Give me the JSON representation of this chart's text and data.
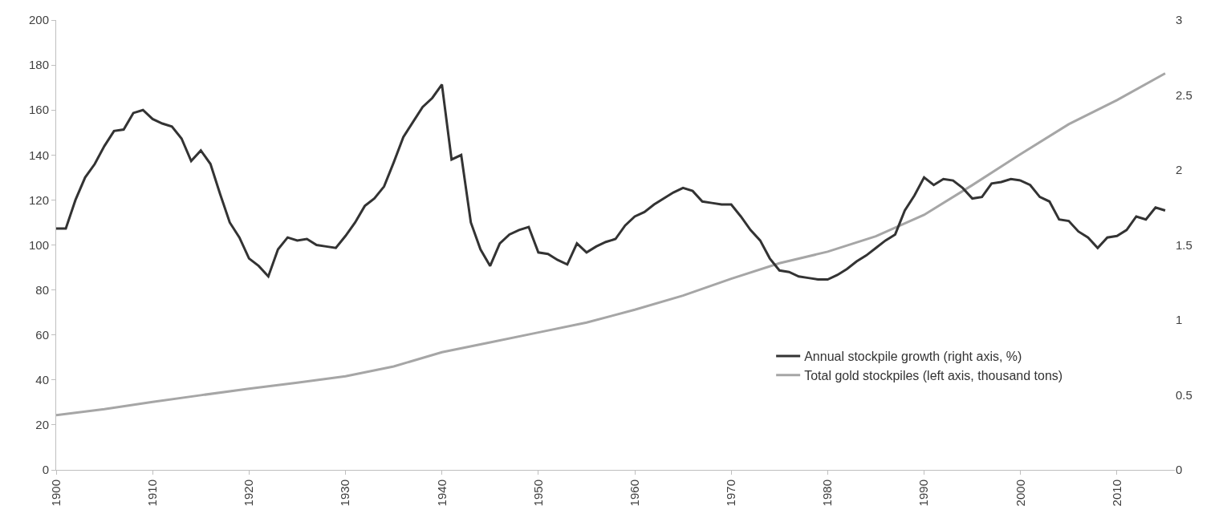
{
  "chart_data": {
    "type": "line",
    "xlim": [
      1900,
      2016
    ],
    "xticks": [
      1900,
      1910,
      1920,
      1930,
      1940,
      1950,
      1960,
      1970,
      1980,
      1990,
      2000,
      2010
    ],
    "ylim": [
      0,
      200
    ],
    "yticks": [
      0,
      20,
      40,
      60,
      80,
      100,
      120,
      140,
      160,
      180,
      200
    ],
    "y2lim": [
      0,
      3
    ],
    "y2ticks": [
      0,
      0.5,
      1,
      1.5,
      2,
      2.5,
      3
    ],
    "grid": false,
    "legend": "bottom right",
    "marker": "none",
    "line_style": "solid",
    "series": [
      {
        "name": "Annual stockpile growth (right axis, %)",
        "color": "#333333",
        "axis": "y2",
        "x": [
          1900,
          1901,
          1902,
          1903,
          1904,
          1905,
          1906,
          1907,
          1908,
          1909,
          1910,
          1911,
          1912,
          1913,
          1914,
          1915,
          1916,
          1917,
          1918,
          1919,
          1920,
          1921,
          1922,
          1923,
          1924,
          1925,
          1926,
          1927,
          1928,
          1929,
          1930,
          1931,
          1932,
          1933,
          1934,
          1935,
          1936,
          1937,
          1938,
          1939,
          1940,
          1941,
          1942,
          1943,
          1944,
          1945,
          1946,
          1947,
          1948,
          1949,
          1950,
          1951,
          1952,
          1953,
          1954,
          1955,
          1956,
          1957,
          1958,
          1959,
          1960,
          1961,
          1962,
          1963,
          1964,
          1965,
          1966,
          1967,
          1968,
          1969,
          1970,
          1971,
          1972,
          1973,
          1974,
          1975,
          1976,
          1977,
          1978,
          1979,
          1980,
          1981,
          1982,
          1983,
          1984,
          1985,
          1986,
          1987,
          1988,
          1989,
          1990,
          1991,
          1992,
          1993,
          1994,
          1995,
          1996,
          1997,
          1998,
          1999,
          2000,
          2001,
          2002,
          2003,
          2004,
          2005,
          2006,
          2007,
          2008,
          2009,
          2010,
          2011,
          2012,
          2013,
          2014,
          2015
        ],
        "values": [
          1.61,
          1.61,
          1.8,
          1.95,
          2.04,
          2.16,
          2.26,
          2.27,
          2.38,
          2.4,
          2.34,
          2.31,
          2.29,
          2.21,
          2.06,
          2.13,
          2.04,
          1.84,
          1.65,
          1.55,
          1.41,
          1.36,
          1.29,
          1.47,
          1.55,
          1.53,
          1.54,
          1.5,
          1.49,
          1.48,
          1.56,
          1.65,
          1.76,
          1.81,
          1.89,
          2.05,
          2.22,
          2.32,
          2.42,
          2.48,
          2.57,
          2.07,
          2.1,
          1.65,
          1.47,
          1.36,
          1.51,
          1.57,
          1.6,
          1.62,
          1.45,
          1.44,
          1.4,
          1.37,
          1.51,
          1.45,
          1.49,
          1.52,
          1.54,
          1.63,
          1.69,
          1.72,
          1.77,
          1.81,
          1.85,
          1.88,
          1.86,
          1.79,
          1.78,
          1.77,
          1.77,
          1.69,
          1.6,
          1.53,
          1.41,
          1.33,
          1.32,
          1.29,
          1.28,
          1.27,
          1.27,
          1.3,
          1.34,
          1.39,
          1.43,
          1.48,
          1.53,
          1.57,
          1.73,
          1.83,
          1.95,
          1.9,
          1.94,
          1.93,
          1.88,
          1.81,
          1.82,
          1.91,
          1.92,
          1.94,
          1.93,
          1.9,
          1.82,
          1.79,
          1.67,
          1.66,
          1.59,
          1.55,
          1.48,
          1.55,
          1.56,
          1.6,
          1.69,
          1.67,
          1.75,
          1.73
        ]
      },
      {
        "name": "Total gold stockpiles (left axis, thousand tons)",
        "color": "#a6a6a6",
        "x": [
          1900,
          1905,
          1910,
          1915,
          1920,
          1925,
          1930,
          1935,
          1940,
          1945,
          1950,
          1955,
          1960,
          1965,
          1970,
          1975,
          1980,
          1985,
          1990,
          1995,
          2000,
          2005,
          2010,
          2015
        ],
        "values": [
          24.3,
          27.0,
          30.2,
          33.2,
          36.1,
          38.8,
          41.6,
          46.0,
          52.3,
          56.7,
          61.1,
          65.5,
          71.2,
          77.5,
          85.0,
          91.9,
          97.0,
          103.9,
          113.4,
          126.6,
          140.4,
          153.7,
          164.4,
          176.3
        ]
      }
    ]
  }
}
